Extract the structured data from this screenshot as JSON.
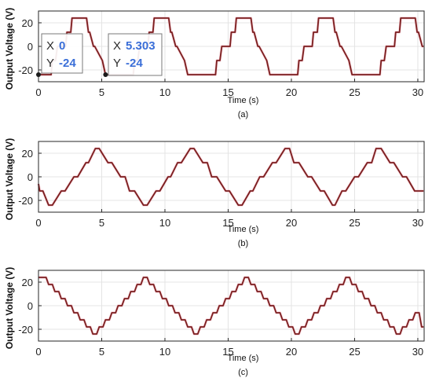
{
  "chart_data": [
    {
      "type": "line",
      "panel_caption": "(a)",
      "xlabel": "Time (s)",
      "ylabel": "Output Voltage (V)",
      "xlim": [
        0,
        30.5
      ],
      "ylim": [
        -30,
        30
      ],
      "xticks": [
        0,
        5,
        10,
        15,
        20,
        25,
        30
      ],
      "yticks": [
        -20,
        0,
        20
      ],
      "grid": true,
      "line_color": "#7a1f1f",
      "waveform": "quasi-square, 4 steps, flat top",
      "series": [
        {
          "x": [
            0,
            0.1,
            0.35,
            0.5,
            1.0,
            1.1,
            1.35,
            1.5,
            2.15,
            2.25,
            2.55,
            2.65,
            2.8,
            3.8,
            3.95,
            4.05,
            4.35,
            4.45,
            5.05,
            5.3,
            5.55,
            6.5,
            6.6,
            6.85,
            7.0,
            7.5,
            7.6,
            7.85,
            8.0,
            8.65,
            8.75,
            9.05,
            9.15,
            9.3,
            10.3,
            10.45,
            10.55,
            10.85,
            10.95,
            11.55,
            11.8,
            12.05,
            13.0,
            13.1,
            13.35,
            13.5,
            14.0,
            14.1,
            14.35,
            14.5,
            15.15,
            15.25,
            15.55,
            15.65,
            15.8,
            16.8,
            16.95,
            17.05,
            17.35,
            17.45,
            18.05,
            18.3,
            18.55,
            19.5,
            19.6,
            19.85,
            20.0,
            20.5,
            20.6,
            20.85,
            21.0,
            21.65,
            21.75,
            22.05,
            22.15,
            22.3,
            23.3,
            23.45,
            23.55,
            23.85,
            23.95,
            24.55,
            24.8,
            25.05,
            26.0,
            26.1,
            26.35,
            26.5,
            27.0,
            27.1,
            27.35,
            27.5,
            28.15,
            28.25,
            28.55,
            28.65,
            28.8,
            29.8,
            29.95,
            30.05,
            30.35,
            30.45
          ],
          "y": [
            -24,
            -24,
            -24,
            -24,
            -24,
            -12,
            -12,
            0,
            0,
            12,
            12,
            24,
            24,
            24,
            12,
            12,
            0,
            0,
            -12,
            -24,
            -24,
            -24,
            -24,
            -24,
            -24,
            -24,
            -12,
            -12,
            0,
            0,
            12,
            12,
            24,
            24,
            24,
            12,
            12,
            0,
            0,
            -12,
            -24,
            -24,
            -24,
            -24,
            -24,
            -24,
            -24,
            -12,
            -12,
            0,
            0,
            12,
            12,
            24,
            24,
            24,
            12,
            12,
            0,
            0,
            -12,
            -24,
            -24,
            -24,
            -24,
            -24,
            -24,
            -24,
            -12,
            -12,
            0,
            0,
            12,
            12,
            24,
            24,
            24,
            12,
            12,
            0,
            0,
            -12,
            -24,
            -24,
            -24,
            -24,
            -24,
            -24,
            -24,
            -12,
            -12,
            0,
            0,
            12,
            12,
            24,
            24,
            24,
            12,
            12,
            0,
            0
          ]
        }
      ],
      "datatips": [
        {
          "x_label": "X",
          "x_value": "0",
          "y_label": "Y",
          "y_value": "-24",
          "at": [
            0,
            -24
          ]
        },
        {
          "x_label": "X",
          "x_value": "5.303",
          "y_label": "Y",
          "y_value": "-24",
          "at": [
            5.303,
            -24
          ]
        }
      ]
    },
    {
      "type": "line",
      "panel_caption": "(b)",
      "xlabel": "Time (s)",
      "ylabel": "Output Voltage (V)",
      "xlim": [
        0,
        30.5
      ],
      "ylim": [
        -30,
        30
      ],
      "xticks": [
        0,
        5,
        10,
        15,
        20,
        25,
        30
      ],
      "yticks": [
        -20,
        0,
        20
      ],
      "grid": true,
      "line_color": "#7a1f1f",
      "waveform": "staircase, 4 steps, short top",
      "series": [
        {
          "x": [
            0,
            0.1,
            0.35,
            0.8,
            1.1,
            1.8,
            2.1,
            2.8,
            3.1,
            3.75,
            3.95,
            4.5,
            4.8,
            5.5,
            5.8,
            6.5,
            6.85,
            7.2,
            7.6,
            8.3,
            8.6,
            9.3,
            9.6,
            10.25,
            10.45,
            11.0,
            11.3,
            12.0,
            12.3,
            13.0,
            13.35,
            13.7,
            14.1,
            14.8,
            15.1,
            15.8,
            16.1,
            16.75,
            16.95,
            17.5,
            17.8,
            18.5,
            18.8,
            19.5,
            19.85,
            20.2,
            20.6,
            21.3,
            21.6,
            22.3,
            22.6,
            23.25,
            23.45,
            24.0,
            24.3,
            25.0,
            25.3,
            26.0,
            26.35,
            26.7,
            27.1,
            27.8,
            28.1,
            28.8,
            29.1,
            29.75,
            29.95,
            30.45
          ],
          "y": [
            -6,
            -12,
            -12,
            -24,
            -24,
            -12,
            -12,
            0,
            0,
            12,
            12,
            24,
            24,
            12,
            12,
            0,
            0,
            -12,
            -12,
            -24,
            -24,
            -12,
            -12,
            0,
            0,
            12,
            12,
            24,
            24,
            12,
            12,
            0,
            0,
            -12,
            -12,
            -24,
            -24,
            -12,
            -12,
            0,
            0,
            12,
            12,
            24,
            24,
            12,
            12,
            0,
            0,
            -12,
            -12,
            -24,
            -24,
            -12,
            -12,
            0,
            0,
            12,
            12,
            24,
            24,
            12,
            12,
            0,
            0,
            -12,
            -12,
            -12
          ]
        }
      ]
    },
    {
      "type": "line",
      "panel_caption": "(c)",
      "xlabel": "Time (s)",
      "ylabel": "Output Voltage (V)",
      "xlim": [
        0,
        30.5
      ],
      "ylim": [
        -30,
        30
      ],
      "xticks": [
        0,
        5,
        10,
        15,
        20,
        25,
        30
      ],
      "yticks": [
        -20,
        0,
        20
      ],
      "grid": true,
      "line_color": "#7a1f1f",
      "waveform": "triangular staircase",
      "series": [
        {
          "x": [
            0,
            0.6,
            0.8,
            1.1,
            1.3,
            1.6,
            1.8,
            2.1,
            2.3,
            2.6,
            2.8,
            3.1,
            3.3,
            3.6,
            3.8,
            4.1,
            4.3,
            4.6,
            4.8,
            5.1,
            5.3,
            5.6,
            5.8,
            6.1,
            6.3,
            6.6,
            6.8,
            7.1,
            7.3,
            7.6,
            7.8,
            8.1,
            8.3,
            8.6,
            8.8,
            9.1,
            9.3,
            9.6,
            9.8,
            10.1,
            10.3,
            10.6,
            10.8,
            11.1,
            11.3,
            11.6,
            11.8,
            12.1,
            12.3,
            12.6,
            12.8,
            13.1,
            13.3,
            13.6,
            13.8,
            14.1,
            14.3,
            14.6,
            14.8,
            15.1,
            15.3,
            15.6,
            15.8,
            16.1,
            16.3,
            16.6,
            16.8,
            17.1,
            17.3,
            17.6,
            17.8,
            18.1,
            18.3,
            18.6,
            18.8,
            19.1,
            19.3,
            19.6,
            19.8,
            20.1,
            20.3,
            20.6,
            20.8,
            21.1,
            21.3,
            21.6,
            21.8,
            22.1,
            22.3,
            22.6,
            22.8,
            23.1,
            23.3,
            23.6,
            23.8,
            24.1,
            24.3,
            24.6,
            24.8,
            25.1,
            25.3,
            25.6,
            25.8,
            26.1,
            26.3,
            26.6,
            26.8,
            27.1,
            27.3,
            27.6,
            27.8,
            28.1,
            28.3,
            28.6,
            28.8,
            29.1,
            29.3,
            29.6,
            29.8,
            30.1,
            30.3,
            30.45
          ],
          "y": [
            24,
            24,
            18,
            18,
            12,
            12,
            6,
            6,
            0,
            0,
            -6,
            -6,
            -12,
            -12,
            -18,
            -18,
            -24,
            -24,
            -18,
            -18,
            -12,
            -12,
            -6,
            -6,
            0,
            0,
            6,
            6,
            12,
            12,
            18,
            18,
            24,
            24,
            18,
            18,
            12,
            12,
            6,
            6,
            0,
            0,
            -6,
            -6,
            -12,
            -12,
            -18,
            -18,
            -24,
            -24,
            -18,
            -18,
            -12,
            -12,
            -6,
            -6,
            0,
            0,
            6,
            6,
            12,
            12,
            18,
            18,
            24,
            24,
            18,
            18,
            12,
            12,
            6,
            6,
            0,
            0,
            -6,
            -6,
            -12,
            -12,
            -18,
            -18,
            -24,
            -24,
            -18,
            -18,
            -12,
            -12,
            -6,
            -6,
            0,
            0,
            6,
            6,
            12,
            12,
            18,
            18,
            24,
            24,
            18,
            18,
            12,
            12,
            6,
            6,
            0,
            0,
            -6,
            -6,
            -12,
            -12,
            -18,
            -18,
            -24,
            -24,
            -18,
            -18,
            -12,
            -12,
            -6,
            -6,
            -18,
            -18
          ]
        }
      ]
    }
  ]
}
